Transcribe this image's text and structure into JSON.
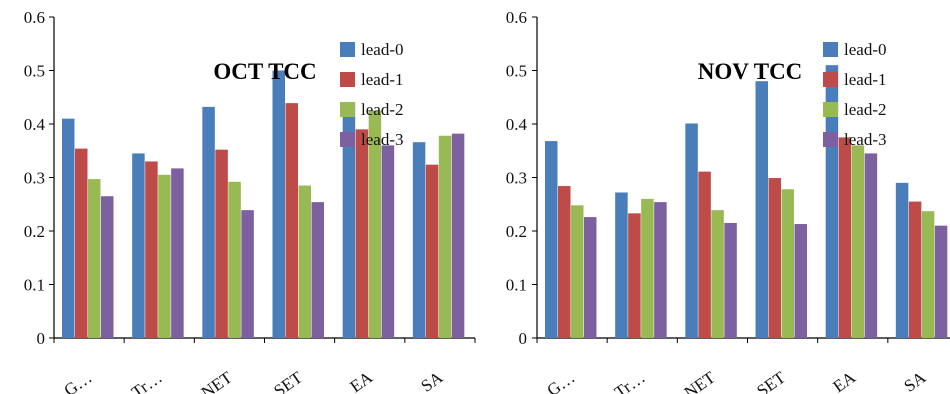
{
  "chart_data": [
    {
      "type": "bar",
      "title": "OCT TCC",
      "categories": [
        "G…",
        "Tr…",
        "NET",
        "SET",
        "EA",
        "SA"
      ],
      "yticks": [
        "0",
        "0.1",
        "0.2",
        "0.3",
        "0.4",
        "0.5",
        "0.6"
      ],
      "ylim": [
        0,
        0.6
      ],
      "legend_position": "top-right",
      "series": [
        {
          "name": "lead-0",
          "color": "#4a7ebb",
          "values": [
            0.41,
            0.345,
            0.432,
            0.5,
            0.44,
            0.366
          ]
        },
        {
          "name": "lead-1",
          "color": "#be4b48",
          "values": [
            0.354,
            0.33,
            0.352,
            0.439,
            0.39,
            0.324
          ]
        },
        {
          "name": "lead-2",
          "color": "#98b954",
          "values": [
            0.297,
            0.305,
            0.292,
            0.285,
            0.425,
            0.378
          ]
        },
        {
          "name": "lead-3",
          "color": "#7d60a0",
          "values": [
            0.265,
            0.317,
            0.239,
            0.254,
            0.36,
            0.382
          ]
        }
      ]
    },
    {
      "type": "bar",
      "title": "NOV TCC",
      "categories": [
        "G…",
        "Tr…",
        "NET",
        "SET",
        "EA",
        "SA"
      ],
      "yticks": [
        "0",
        "0.1",
        "0.2",
        "0.3",
        "0.4",
        "0.5",
        "0.6"
      ],
      "ylim": [
        0,
        0.6
      ],
      "legend_position": "top-right",
      "series": [
        {
          "name": "lead-0",
          "color": "#4a7ebb",
          "values": [
            0.368,
            0.272,
            0.401,
            0.48,
            0.51,
            0.29
          ]
        },
        {
          "name": "lead-1",
          "color": "#be4b48",
          "values": [
            0.284,
            0.233,
            0.311,
            0.299,
            0.375,
            0.255
          ]
        },
        {
          "name": "lead-2",
          "color": "#98b954",
          "values": [
            0.248,
            0.26,
            0.239,
            0.278,
            0.36,
            0.237
          ]
        },
        {
          "name": "lead-3",
          "color": "#7d60a0",
          "values": [
            0.226,
            0.254,
            0.215,
            0.213,
            0.345,
            0.21
          ]
        }
      ]
    }
  ]
}
